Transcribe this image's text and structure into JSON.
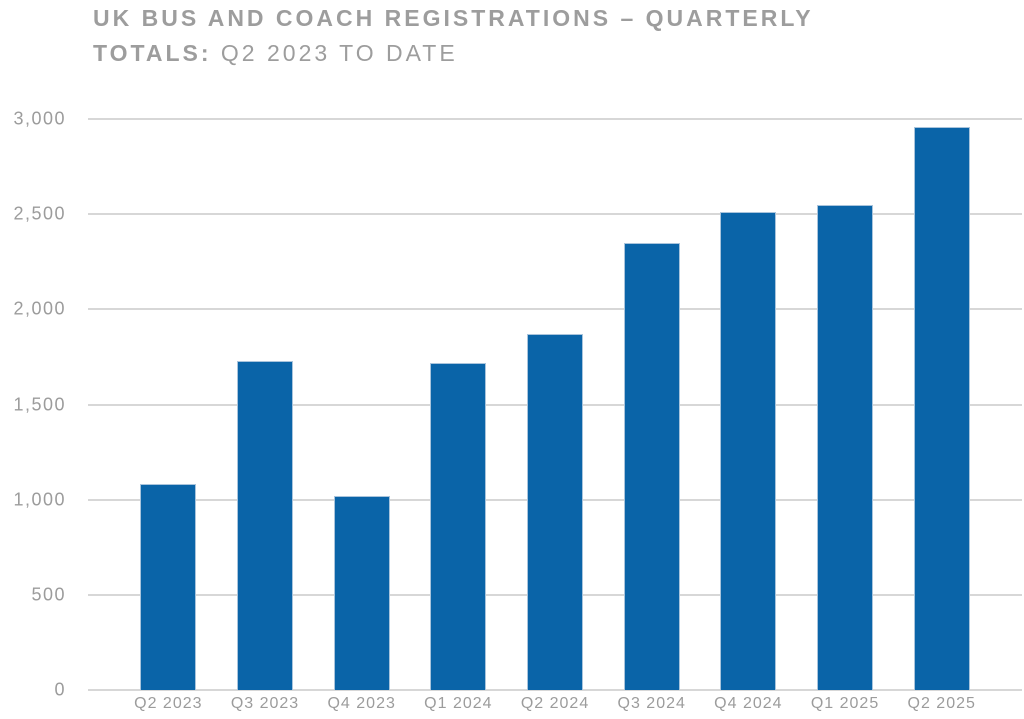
{
  "title": {
    "line1": "UK BUS AND COACH REGISTRATIONS – QUARTERLY",
    "line2_bold": "TOTALS:",
    "line2_rest": " Q2 2023 TO DATE"
  },
  "colors": {
    "background": "#ffffff",
    "bar": "#0a64a8",
    "bar_edge": "#a9c4dc",
    "grid": "#d7d7d7",
    "text": "#9c9c9c",
    "title": "#9d9d9d"
  },
  "chart_data": {
    "type": "bar",
    "title": "UK BUS AND COACH REGISTRATIONS – QUARTERLY TOTALS: Q2 2023 TO DATE",
    "categories": [
      "Q2 2023",
      "Q3 2023",
      "Q4 2023",
      "Q1 2024",
      "Q2 2024",
      "Q3 2024",
      "Q4 2024",
      "Q1 2025",
      "Q2 2025"
    ],
    "values": [
      1080,
      1730,
      1020,
      1720,
      1870,
      2350,
      2510,
      2550,
      2960
    ],
    "xlabel": "",
    "ylabel": "",
    "ylim": [
      0,
      3000
    ],
    "ytick_step": 500,
    "ytick_labels": [
      "0",
      "500",
      "1,000",
      "1,500",
      "2,000",
      "2,500",
      "3,000"
    ],
    "grid": true,
    "legend_position": "none"
  }
}
